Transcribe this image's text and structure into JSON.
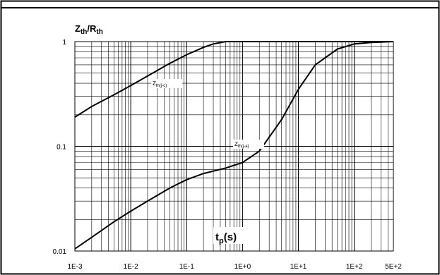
{
  "chart_data": {
    "type": "line",
    "title": "",
    "ylabel": {
      "main": "Z",
      "sub1": "th",
      "slash": "/R",
      "sub2": "th"
    },
    "xlabel": {
      "main": "t",
      "sub": "p",
      "rest": "(s)"
    },
    "xscale": "log",
    "yscale": "log",
    "xlim": [
      0.001,
      500
    ],
    "ylim": [
      0.01,
      1
    ],
    "grid": true,
    "x_ticks": [
      {
        "value": 0.001,
        "label": "1E-3"
      },
      {
        "value": 0.01,
        "label": "1E-2"
      },
      {
        "value": 0.1,
        "label": "1E-1"
      },
      {
        "value": 1,
        "label": "1E+0"
      },
      {
        "value": 10,
        "label": "1E+1"
      },
      {
        "value": 100,
        "label": "1E+2"
      },
      {
        "value": 500,
        "label": "5E+2"
      }
    ],
    "y_ticks": [
      {
        "value": 0.01,
        "label": "0.01"
      },
      {
        "value": 0.1,
        "label": "0.1"
      },
      {
        "value": 1,
        "label": "1"
      }
    ],
    "series": [
      {
        "name": "Zth(j-c)",
        "label_main": "Z",
        "label_sub": "th(j-c)",
        "points": [
          [
            0.001,
            0.19
          ],
          [
            0.002,
            0.24
          ],
          [
            0.005,
            0.31
          ],
          [
            0.01,
            0.38
          ],
          [
            0.02,
            0.47
          ],
          [
            0.05,
            0.62
          ],
          [
            0.1,
            0.75
          ],
          [
            0.2,
            0.88
          ],
          [
            0.3,
            0.95
          ],
          [
            0.5,
            1.0
          ],
          [
            1,
            1.0
          ],
          [
            10,
            1.0
          ],
          [
            100,
            1.0
          ],
          [
            500,
            1.0
          ]
        ]
      },
      {
        "name": "Zth(j-a)",
        "label_main": "Z",
        "label_sub": "th(j-a)",
        "points": [
          [
            0.001,
            0.0105
          ],
          [
            0.002,
            0.0135
          ],
          [
            0.005,
            0.019
          ],
          [
            0.01,
            0.024
          ],
          [
            0.02,
            0.03
          ],
          [
            0.05,
            0.04
          ],
          [
            0.1,
            0.048
          ],
          [
            0.2,
            0.055
          ],
          [
            0.5,
            0.062
          ],
          [
            1,
            0.07
          ],
          [
            2,
            0.09
          ],
          [
            5,
            0.18
          ],
          [
            10,
            0.35
          ],
          [
            20,
            0.6
          ],
          [
            50,
            0.85
          ],
          [
            100,
            0.95
          ],
          [
            200,
            0.98
          ],
          [
            500,
            1.0
          ]
        ]
      }
    ]
  }
}
